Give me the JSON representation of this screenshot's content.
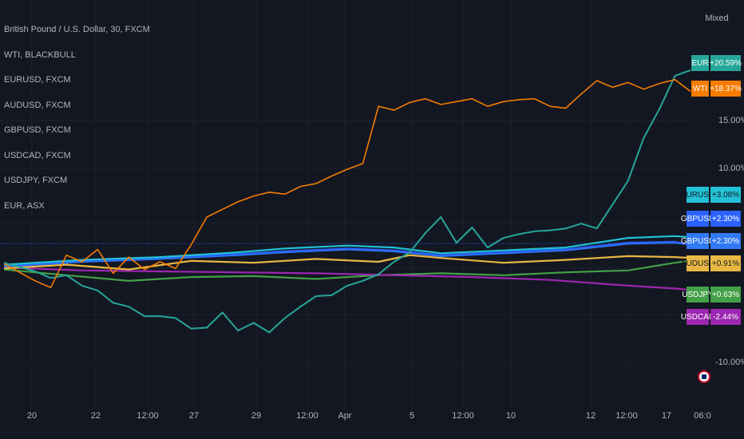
{
  "legend": [
    "British Pound / U.S. Dollar, 30, FXCM",
    "WTI, BLACKBULL",
    "EURUSD, FXCM",
    "AUDUSD, FXCM",
    "GBPUSD, FXCM",
    "USDCAD, FXCM",
    "USDJPY, FXCM",
    "EUR, ASX"
  ],
  "axis_mode": "Mixed",
  "colors": {
    "background": "#131722",
    "grid": "#1e222d",
    "eur": "#26a69a",
    "wti": "#f57c00",
    "eurusd": "#22c1d6",
    "gbpusd": "#2962ff",
    "gbpusd_main": "#3179f5",
    "audusd": "#e9b844",
    "usdjpy": "#43a047",
    "usdcad": "#9c27b0"
  },
  "chart_data": {
    "type": "line",
    "y_ticks": [
      "15.00%",
      "10.00%",
      "-10.00%"
    ],
    "x_ticks": [
      "20",
      "22",
      "12:00",
      "27",
      "29",
      "12:00",
      "Apr",
      "5",
      "12:00",
      "10",
      "12",
      "12:00",
      "17",
      "06:0"
    ],
    "series": [
      {
        "name": "EUR",
        "label": "+20.59%",
        "color": "#26a69a",
        "last": 20.59,
        "points": [
          [
            0,
            0.4
          ],
          [
            2,
            -0.5
          ],
          [
            3,
            -1.2
          ],
          [
            4,
            -0.9
          ],
          [
            5,
            -2
          ],
          [
            6,
            -2.5
          ],
          [
            7,
            -3.8
          ],
          [
            8,
            -4.2
          ],
          [
            9,
            -5.2
          ],
          [
            10,
            -5.2
          ],
          [
            11,
            -5.4
          ],
          [
            12,
            -6.5
          ],
          [
            13,
            -6.4
          ],
          [
            14,
            -4.8
          ],
          [
            15,
            -6.7
          ],
          [
            16,
            -5.9
          ],
          [
            17,
            -6.9
          ],
          [
            18,
            -5.4
          ],
          [
            19,
            -4.2
          ],
          [
            20,
            -3.1
          ],
          [
            21,
            -3.0
          ],
          [
            22,
            -2.0
          ],
          [
            23,
            -1.5
          ],
          [
            24,
            -0.8
          ],
          [
            25,
            0.5
          ],
          [
            26,
            1.5
          ],
          [
            27,
            3.5
          ],
          [
            28,
            5.2
          ],
          [
            29,
            2.5
          ],
          [
            30,
            4.1
          ],
          [
            31,
            2.0
          ],
          [
            32,
            3.0
          ],
          [
            33,
            3.4
          ],
          [
            34,
            3.7
          ],
          [
            35,
            3.8
          ],
          [
            36,
            4.0
          ],
          [
            37,
            4.5
          ],
          [
            38,
            4.0
          ],
          [
            39,
            6.5
          ],
          [
            40,
            9.0
          ],
          [
            41,
            13.5
          ],
          [
            42,
            16.5
          ],
          [
            43,
            20.0
          ],
          [
            44,
            20.59
          ]
        ]
      },
      {
        "name": "WTI",
        "label": "+18.37%",
        "color": "#f57c00",
        "last": 18.37,
        "points": [
          [
            0,
            0.3
          ],
          [
            2,
            -1.5
          ],
          [
            3,
            -2.2
          ],
          [
            4,
            1.2
          ],
          [
            5,
            0.5
          ],
          [
            6,
            1.8
          ],
          [
            7,
            -0.7
          ],
          [
            8,
            1.0
          ],
          [
            9,
            -0.3
          ],
          [
            10,
            0.5
          ],
          [
            11,
            -0.2
          ],
          [
            12,
            2.3
          ],
          [
            13,
            5.2
          ],
          [
            14,
            6.0
          ],
          [
            15,
            6.8
          ],
          [
            16,
            7.4
          ],
          [
            17,
            7.8
          ],
          [
            18,
            7.6
          ],
          [
            19,
            8.4
          ],
          [
            20,
            8.7
          ],
          [
            21,
            9.5
          ],
          [
            22,
            10.2
          ],
          [
            23,
            10.8
          ],
          [
            24,
            16.8
          ],
          [
            25,
            16.4
          ],
          [
            26,
            17.2
          ],
          [
            27,
            17.6
          ],
          [
            28,
            17.0
          ],
          [
            29,
            17.3
          ],
          [
            30,
            17.6
          ],
          [
            31,
            16.8
          ],
          [
            32,
            17.3
          ],
          [
            33,
            17.5
          ],
          [
            34,
            17.6
          ],
          [
            35,
            16.8
          ],
          [
            36,
            16.6
          ],
          [
            37,
            18.1
          ],
          [
            38,
            19.5
          ],
          [
            39,
            18.8
          ],
          [
            40,
            19.3
          ],
          [
            41,
            18.6
          ],
          [
            42,
            19.2
          ],
          [
            43,
            19.6
          ],
          [
            44,
            18.37
          ]
        ]
      },
      {
        "name": "EURUSD",
        "label": "+3.08%",
        "color": "#22c1d6",
        "last": 3.08,
        "points": [
          [
            0,
            0.2
          ],
          [
            5,
            0.7
          ],
          [
            10,
            1.0
          ],
          [
            15,
            1.5
          ],
          [
            18,
            1.9
          ],
          [
            22,
            2.2
          ],
          [
            25,
            2.0
          ],
          [
            28,
            1.4
          ],
          [
            32,
            1.7
          ],
          [
            36,
            2.0
          ],
          [
            40,
            3.0
          ],
          [
            43,
            3.2
          ],
          [
            44,
            3.08
          ]
        ]
      },
      {
        "name": "GBPUSD",
        "label": "+2.30%",
        "color": "#2962ff",
        "last": 2.3,
        "points": [
          [
            0,
            0.1
          ],
          [
            5,
            0.6
          ],
          [
            10,
            0.9
          ],
          [
            15,
            1.3
          ],
          [
            18,
            1.6
          ],
          [
            22,
            1.9
          ],
          [
            25,
            1.7
          ],
          [
            28,
            1.2
          ],
          [
            32,
            1.5
          ],
          [
            36,
            1.8
          ],
          [
            40,
            2.5
          ],
          [
            43,
            2.6
          ],
          [
            44,
            2.3
          ]
        ]
      },
      {
        "name": "GBPUSD",
        "label": "+2.30%",
        "color": "#3179f5",
        "last": 2.3,
        "points": [
          [
            0,
            0.0
          ],
          [
            5,
            0.5
          ],
          [
            10,
            0.8
          ],
          [
            15,
            1.2
          ],
          [
            18,
            1.5
          ],
          [
            22,
            1.8
          ],
          [
            25,
            1.6
          ],
          [
            28,
            1.1
          ],
          [
            32,
            1.4
          ],
          [
            36,
            1.7
          ],
          [
            40,
            2.4
          ],
          [
            43,
            2.5
          ],
          [
            44,
            2.3
          ]
        ]
      },
      {
        "name": "AUDUSD",
        "label": "+0.91%",
        "color": "#e9b844",
        "last": 0.91,
        "points": [
          [
            0,
            -0.2
          ],
          [
            4,
            0.2
          ],
          [
            8,
            -0.3
          ],
          [
            12,
            0.6
          ],
          [
            16,
            0.4
          ],
          [
            20,
            0.8
          ],
          [
            24,
            0.5
          ],
          [
            26,
            1.2
          ],
          [
            28,
            0.9
          ],
          [
            32,
            0.4
          ],
          [
            36,
            0.7
          ],
          [
            40,
            1.1
          ],
          [
            43,
            1.0
          ],
          [
            44,
            0.91
          ]
        ]
      },
      {
        "name": "USDJPY",
        "label": "+0.63%",
        "color": "#43a047",
        "last": 0.63,
        "points": [
          [
            0,
            -0.3
          ],
          [
            4,
            -0.9
          ],
          [
            8,
            -1.5
          ],
          [
            12,
            -1.1
          ],
          [
            16,
            -1.0
          ],
          [
            20,
            -1.3
          ],
          [
            24,
            -0.9
          ],
          [
            28,
            -0.7
          ],
          [
            32,
            -0.9
          ],
          [
            36,
            -0.6
          ],
          [
            40,
            -0.4
          ],
          [
            43,
            0.4
          ],
          [
            44,
            0.63
          ]
        ]
      },
      {
        "name": "USDCAD",
        "label": "-2.44%",
        "color": "#9c27b0",
        "last": -2.44,
        "points": [
          [
            0,
            -0.1
          ],
          [
            5,
            -0.4
          ],
          [
            10,
            -0.5
          ],
          [
            15,
            -0.6
          ],
          [
            20,
            -0.7
          ],
          [
            25,
            -0.9
          ],
          [
            30,
            -1.1
          ],
          [
            35,
            -1.4
          ],
          [
            40,
            -2.0
          ],
          [
            43,
            -2.3
          ],
          [
            44,
            -2.44
          ]
        ]
      }
    ]
  }
}
